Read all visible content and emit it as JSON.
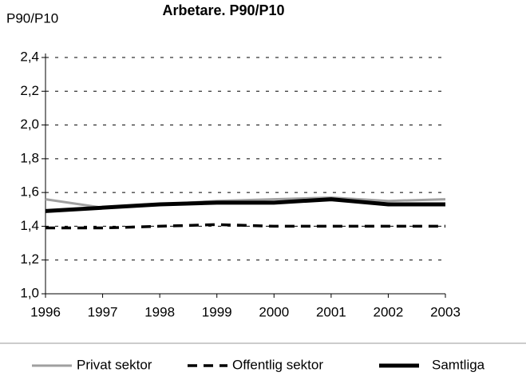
{
  "chart_data": {
    "type": "line",
    "title": "Arbetare. P90/P10",
    "y_label": "P90/P10",
    "x": [
      1996,
      1997,
      1998,
      1999,
      2000,
      2001,
      2002,
      2003
    ],
    "xlim": [
      1996,
      2003
    ],
    "xticks": [
      1996,
      1997,
      1998,
      1999,
      2000,
      2001,
      2002,
      2003
    ],
    "ylim": [
      1.0,
      2.4
    ],
    "yticks": [
      {
        "value": 1.0,
        "label": "1,0"
      },
      {
        "value": 1.2,
        "label": "1,2"
      },
      {
        "value": 1.4,
        "label": "1,4"
      },
      {
        "value": 1.6,
        "label": "1,6"
      },
      {
        "value": 1.8,
        "label": "1,8"
      },
      {
        "value": 2.0,
        "label": "2,0"
      },
      {
        "value": 2.2,
        "label": "2,2"
      },
      {
        "value": 2.4,
        "label": "2,4"
      }
    ],
    "grid": true,
    "legend": "bottom",
    "series": [
      {
        "name": "Privat sektor",
        "color": "#a0a0a0",
        "style": "solid",
        "width": 3,
        "values": [
          1.56,
          1.51,
          1.53,
          1.55,
          1.56,
          1.57,
          1.55,
          1.56
        ]
      },
      {
        "name": "Offentlig sektor",
        "color": "#000000",
        "style": "dashed",
        "width": 3.5,
        "values": [
          1.39,
          1.39,
          1.4,
          1.41,
          1.4,
          1.4,
          1.4,
          1.4
        ]
      },
      {
        "name": "Samtliga",
        "color": "#000000",
        "style": "solid",
        "width": 5,
        "values": [
          1.49,
          1.51,
          1.53,
          1.54,
          1.54,
          1.56,
          1.53,
          1.53
        ]
      }
    ]
  }
}
